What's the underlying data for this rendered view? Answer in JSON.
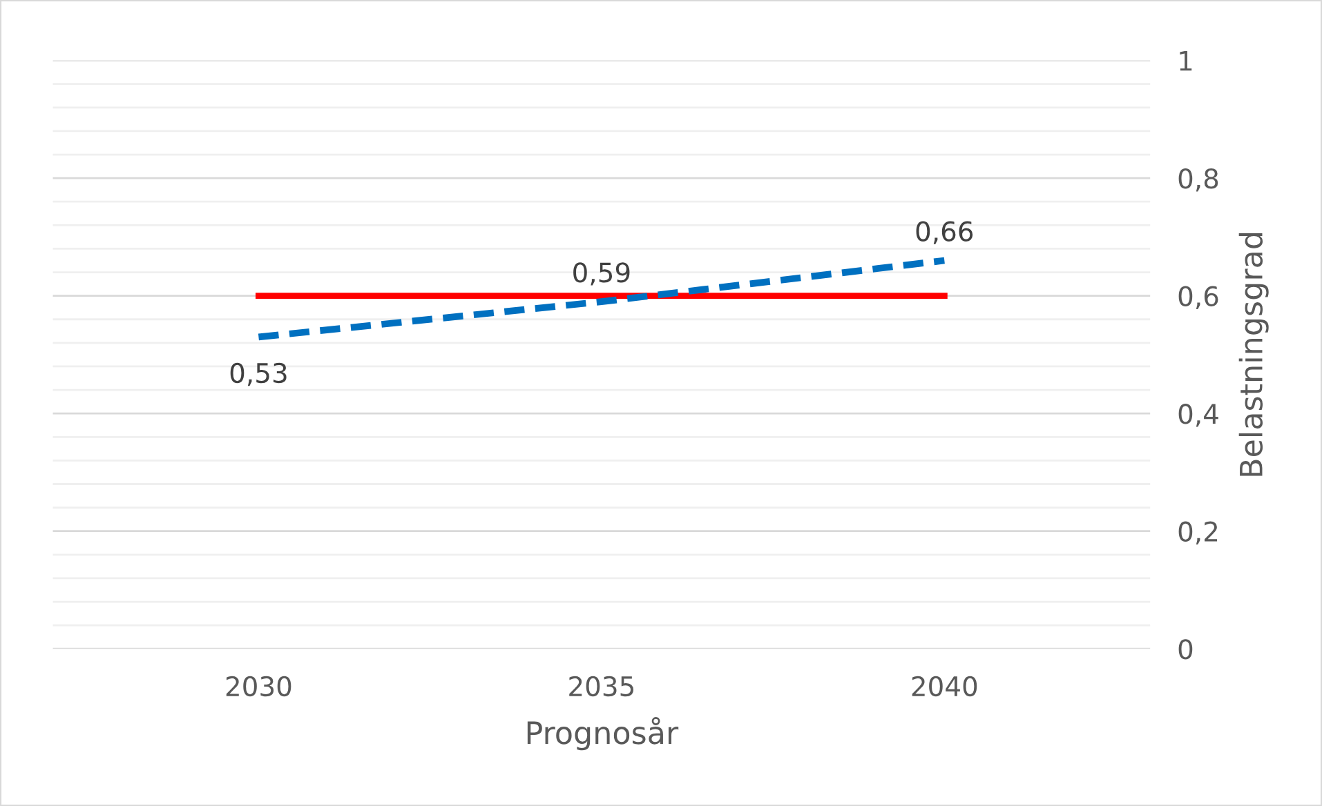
{
  "chart_data": {
    "type": "line",
    "xlabel": "Prognosår",
    "ylabel": "Belastningsgrad",
    "categories": [
      "2030",
      "2035",
      "2040"
    ],
    "series": [
      {
        "color": "#ff0000",
        "values": [
          0.6,
          0.6,
          0.6
        ],
        "line_style": "solid"
      },
      {
        "color": "#0070c0",
        "values": [
          0.53,
          0.59,
          0.66
        ],
        "line_style": "dashed",
        "value_labels": [
          "0,53",
          "0,59",
          "0,66"
        ]
      }
    ],
    "ylim": [
      0,
      1
    ],
    "yticks": [
      0,
      {
        "value": 0.04,
        "label": null
      },
      {
        "value": 0.08,
        "label": null
      },
      {
        "value": 0.12,
        "label": null
      },
      {
        "value": 0.16,
        "label": null
      },
      {
        "value": 0.2,
        "label": "0,2"
      },
      {
        "value": 0.24,
        "label": null
      },
      {
        "value": 0.28,
        "label": null
      },
      {
        "value": 0.32,
        "label": null
      },
      {
        "value": 0.36,
        "label": null
      },
      {
        "value": 0.4,
        "label": "0,4"
      },
      {
        "value": 0.44,
        "label": null
      },
      {
        "value": 0.48,
        "label": null
      },
      {
        "value": 0.52,
        "label": null
      },
      {
        "value": 0.56,
        "label": null
      },
      {
        "value": 0.6,
        "label": "0,6"
      },
      {
        "value": 0.64,
        "label": null
      },
      {
        "value": 0.68,
        "label": null
      },
      {
        "value": 0.72,
        "label": null
      },
      {
        "value": 0.76,
        "label": null
      },
      {
        "value": 0.8,
        "label": "0,8"
      },
      {
        "value": 0.84,
        "label": null
      },
      {
        "value": 0.88,
        "label": null
      },
      {
        "value": 0.92,
        "label": null
      },
      {
        "value": 0.96,
        "label": null
      },
      1
    ],
    "grid": "y",
    "legend": false,
    "marker": "none"
  }
}
